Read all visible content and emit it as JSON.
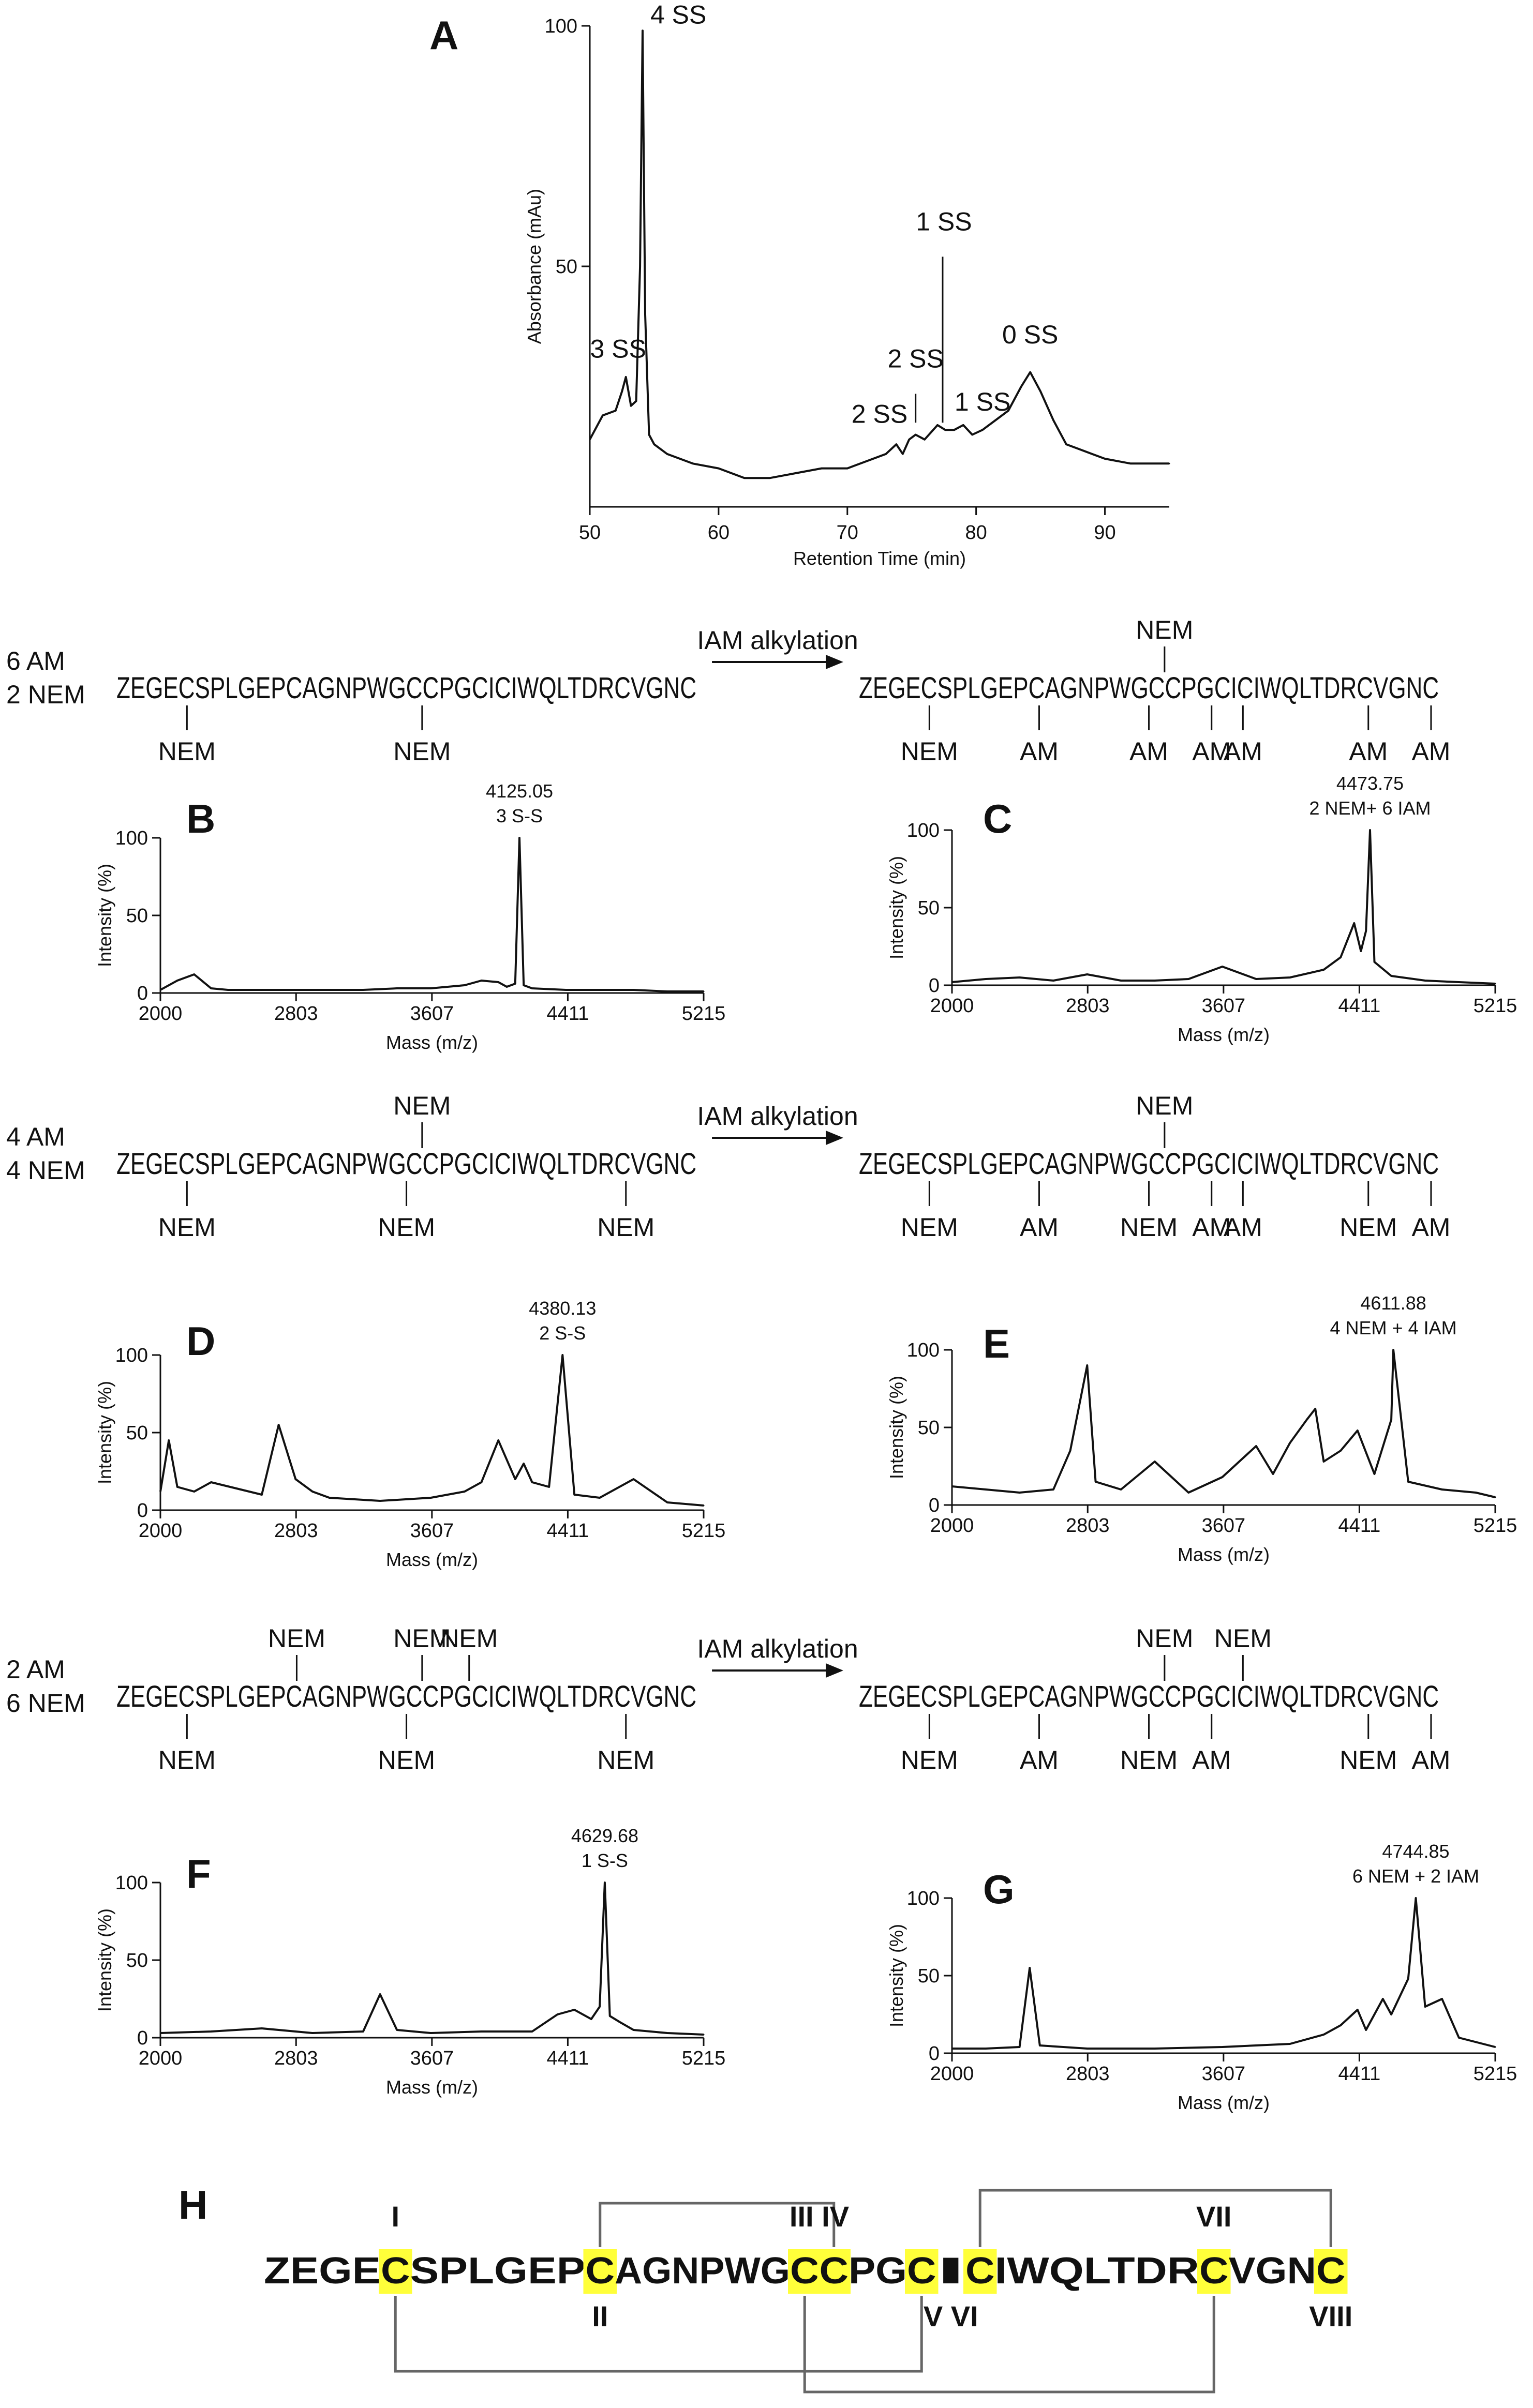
{
  "panels": {
    "A": "A",
    "B": "B",
    "C": "C",
    "D": "D",
    "E": "E",
    "F": "F",
    "G": "G",
    "H": "H"
  },
  "sequence": "ZEGECSPLGEPCAGNPWGCCPGCICIWQLTDRCVGNC",
  "arrow_label": "IAM alkylation",
  "mod_labels": {
    "nem": "NEM",
    "am": "AM"
  },
  "rows": [
    {
      "am_count": "6 AM",
      "nem_count": "2 NEM"
    },
    {
      "am_count": "4 AM",
      "nem_count": "4 NEM"
    },
    {
      "am_count": "2 AM",
      "nem_count": "6 NEM"
    }
  ],
  "chart_data": [
    {
      "panel": "A",
      "type": "line",
      "xlabel": "Retention Time (min)",
      "ylabel": "Absorbance (mAu)",
      "xlim": [
        50,
        95
      ],
      "ylim": [
        0,
        100
      ],
      "xticks": [
        "50",
        "60",
        "70",
        "80",
        "90"
      ],
      "yticks": [
        "50",
        "100"
      ],
      "x": [
        50,
        51,
        52,
        52.5,
        52.8,
        53.2,
        53.6,
        53.9,
        54.1,
        54.3,
        54.6,
        55,
        56,
        58,
        60,
        62,
        64,
        66,
        68,
        70,
        72,
        73,
        73.8,
        74.3,
        74.8,
        75.3,
        76,
        77,
        77.6,
        78.3,
        79,
        79.7,
        80.5,
        81.5,
        82.5,
        83.5,
        84.2,
        85,
        86,
        87,
        88,
        89,
        90,
        92,
        95
      ],
      "y": [
        14,
        19,
        20,
        24,
        27,
        21,
        22,
        50,
        99,
        40,
        15,
        13,
        11,
        9,
        8,
        6,
        6,
        7,
        8,
        8,
        10,
        11,
        13,
        11,
        14,
        15,
        14,
        17,
        16,
        16,
        17,
        15,
        16,
        18,
        20,
        25,
        28,
        24,
        18,
        13,
        12,
        11,
        10,
        9,
        9
      ],
      "annotations": [
        "4 SS",
        "3 SS",
        "2 SS",
        "2 SS",
        "1 SS",
        "1 SS",
        "0 SS"
      ]
    },
    {
      "panel": "B",
      "type": "line",
      "xlabel": "Mass (m/z)",
      "ylabel": "Intensity (%)",
      "xlim": [
        2000,
        5215
      ],
      "ylim": [
        0,
        100
      ],
      "xticks": [
        "2000",
        "2803",
        "3607",
        "4411",
        "5215"
      ],
      "yticks": [
        "0",
        "50",
        "100"
      ],
      "x": [
        2000,
        2100,
        2200,
        2300,
        2400,
        2600,
        2800,
        3000,
        3200,
        3400,
        3600,
        3800,
        3900,
        4000,
        4050,
        4100,
        4125,
        4150,
        4200,
        4400,
        4600,
        4800,
        5000,
        5215
      ],
      "y": [
        2,
        8,
        12,
        3,
        2,
        2,
        2,
        2,
        2,
        3,
        3,
        5,
        8,
        7,
        4,
        6,
        100,
        5,
        3,
        2,
        2,
        2,
        1,
        1
      ],
      "peak_label": "4125.05",
      "peak_sub": "3 S-S"
    },
    {
      "panel": "C",
      "type": "line",
      "xlabel": "Mass (m/z)",
      "ylabel": "Intensity (%)",
      "xlim": [
        2000,
        5215
      ],
      "ylim": [
        0,
        100
      ],
      "xticks": [
        "2000",
        "2803",
        "3607",
        "4411",
        "5215"
      ],
      "yticks": [
        "0",
        "50",
        "100"
      ],
      "x": [
        2000,
        2200,
        2400,
        2600,
        2800,
        3000,
        3200,
        3400,
        3600,
        3800,
        4000,
        4200,
        4300,
        4380,
        4420,
        4450,
        4474,
        4500,
        4600,
        4800,
        5000,
        5215
      ],
      "y": [
        2,
        4,
        5,
        3,
        7,
        3,
        3,
        4,
        12,
        4,
        5,
        10,
        18,
        40,
        22,
        35,
        100,
        15,
        6,
        3,
        2,
        1
      ],
      "peak_label": "4473.75",
      "peak_sub": "2 NEM+ 6 IAM"
    },
    {
      "panel": "D",
      "type": "line",
      "xlabel": "Mass (m/z)",
      "ylabel": "Intensity (%)",
      "xlim": [
        2000,
        5215
      ],
      "ylim": [
        0,
        100
      ],
      "xticks": [
        "2000",
        "2803",
        "3607",
        "4411",
        "5215"
      ],
      "yticks": [
        "0",
        "50",
        "100"
      ],
      "x": [
        2000,
        2050,
        2100,
        2200,
        2300,
        2600,
        2700,
        2800,
        2900,
        3000,
        3300,
        3600,
        3800,
        3900,
        4000,
        4100,
        4150,
        4200,
        4300,
        4380,
        4450,
        4600,
        4800,
        5000,
        5215
      ],
      "y": [
        12,
        45,
        15,
        12,
        18,
        10,
        55,
        20,
        12,
        8,
        6,
        8,
        12,
        18,
        45,
        20,
        30,
        18,
        15,
        100,
        10,
        8,
        20,
        5,
        3
      ],
      "peak_label": "4380.13",
      "peak_sub": "2 S-S"
    },
    {
      "panel": "E",
      "type": "line",
      "xlabel": "Mass (m/z)",
      "ylabel": "Intensity (%)",
      "xlim": [
        2000,
        5215
      ],
      "ylim": [
        0,
        100
      ],
      "xticks": [
        "2000",
        "2803",
        "3607",
        "4411",
        "5215"
      ],
      "yticks": [
        "0",
        "50",
        "100"
      ],
      "x": [
        2000,
        2200,
        2400,
        2600,
        2700,
        2800,
        2850,
        3000,
        3200,
        3400,
        3600,
        3800,
        3900,
        4000,
        4100,
        4150,
        4200,
        4300,
        4400,
        4500,
        4600,
        4612,
        4700,
        4900,
        5100,
        5215
      ],
      "y": [
        12,
        10,
        8,
        10,
        35,
        90,
        15,
        10,
        28,
        8,
        18,
        38,
        20,
        40,
        55,
        62,
        28,
        35,
        48,
        20,
        55,
        100,
        15,
        10,
        8,
        5
      ],
      "peak_label": "4611.88",
      "peak_sub": "4 NEM + 4 IAM"
    },
    {
      "panel": "F",
      "type": "line",
      "xlabel": "Mass (m/z)",
      "ylabel": "Intensity (%)",
      "xlim": [
        2000,
        5215
      ],
      "ylim": [
        0,
        100
      ],
      "xticks": [
        "2000",
        "2803",
        "3607",
        "4411",
        "5215"
      ],
      "yticks": [
        "0",
        "50",
        "100"
      ],
      "x": [
        2000,
        2300,
        2600,
        2900,
        3200,
        3300,
        3400,
        3600,
        3900,
        4200,
        4350,
        4450,
        4550,
        4600,
        4630,
        4660,
        4720,
        4800,
        5000,
        5215
      ],
      "y": [
        3,
        4,
        6,
        3,
        4,
        28,
        5,
        3,
        4,
        4,
        15,
        18,
        12,
        20,
        100,
        14,
        10,
        5,
        3,
        2
      ],
      "peak_label": "4629.68",
      "peak_sub": "1 S-S"
    },
    {
      "panel": "G",
      "type": "line",
      "xlabel": "Mass (m/z)",
      "ylabel": "Intensity (%)",
      "xlim": [
        2000,
        5215
      ],
      "ylim": [
        0,
        100
      ],
      "xticks": [
        "2000",
        "2803",
        "3607",
        "4411",
        "5215"
      ],
      "yticks": [
        "0",
        "50",
        "100"
      ],
      "x": [
        2000,
        2200,
        2400,
        2460,
        2520,
        2800,
        3200,
        3600,
        4000,
        4200,
        4300,
        4400,
        4450,
        4550,
        4600,
        4700,
        4745,
        4800,
        4900,
        5000,
        5215
      ],
      "y": [
        3,
        3,
        4,
        55,
        5,
        3,
        3,
        4,
        6,
        12,
        18,
        28,
        15,
        35,
        25,
        48,
        100,
        30,
        35,
        10,
        4
      ],
      "peak_label": "4744.85",
      "peak_sub": "6 NEM + 2 IAM"
    }
  ],
  "seq_rows": [
    {
      "left_above": [],
      "left_below": [
        "NEM",
        "NEM"
      ],
      "right_above": [
        "NEM"
      ],
      "right_below": [
        "NEM",
        "AM",
        "AM",
        "AM",
        "AM",
        "AM",
        "AM"
      ]
    },
    {
      "left_above": [
        "NEM"
      ],
      "left_below": [
        "NEM",
        "NEM",
        "NEM"
      ],
      "right_above": [
        "NEM"
      ],
      "right_below": [
        "NEM",
        "AM",
        "NEM",
        "AM",
        "AM",
        "NEM",
        "AM"
      ]
    },
    {
      "left_above": [
        "NEM",
        "NEM",
        "NEM"
      ],
      "left_below": [
        "NEM",
        "NEM",
        "NEM"
      ],
      "right_above": [
        "NEM",
        "NEM"
      ],
      "right_below": [
        "NEM",
        "AM",
        "NEM",
        "AM",
        "NEM",
        "AM"
      ]
    }
  ],
  "panel_h": {
    "sequence_parts": [
      "ZEGE",
      "C",
      "SPLGEP",
      "C",
      "AGNPWG",
      "C",
      "C",
      "PG",
      "C",
      "I",
      "C",
      "IWQLTDR",
      "C",
      "VGN",
      "C"
    ],
    "highlight": "#ffff3a",
    "top_roman": [
      "I",
      "III IV",
      "VII"
    ],
    "bottom_roman": [
      "II",
      "V VI",
      "VIII"
    ]
  }
}
